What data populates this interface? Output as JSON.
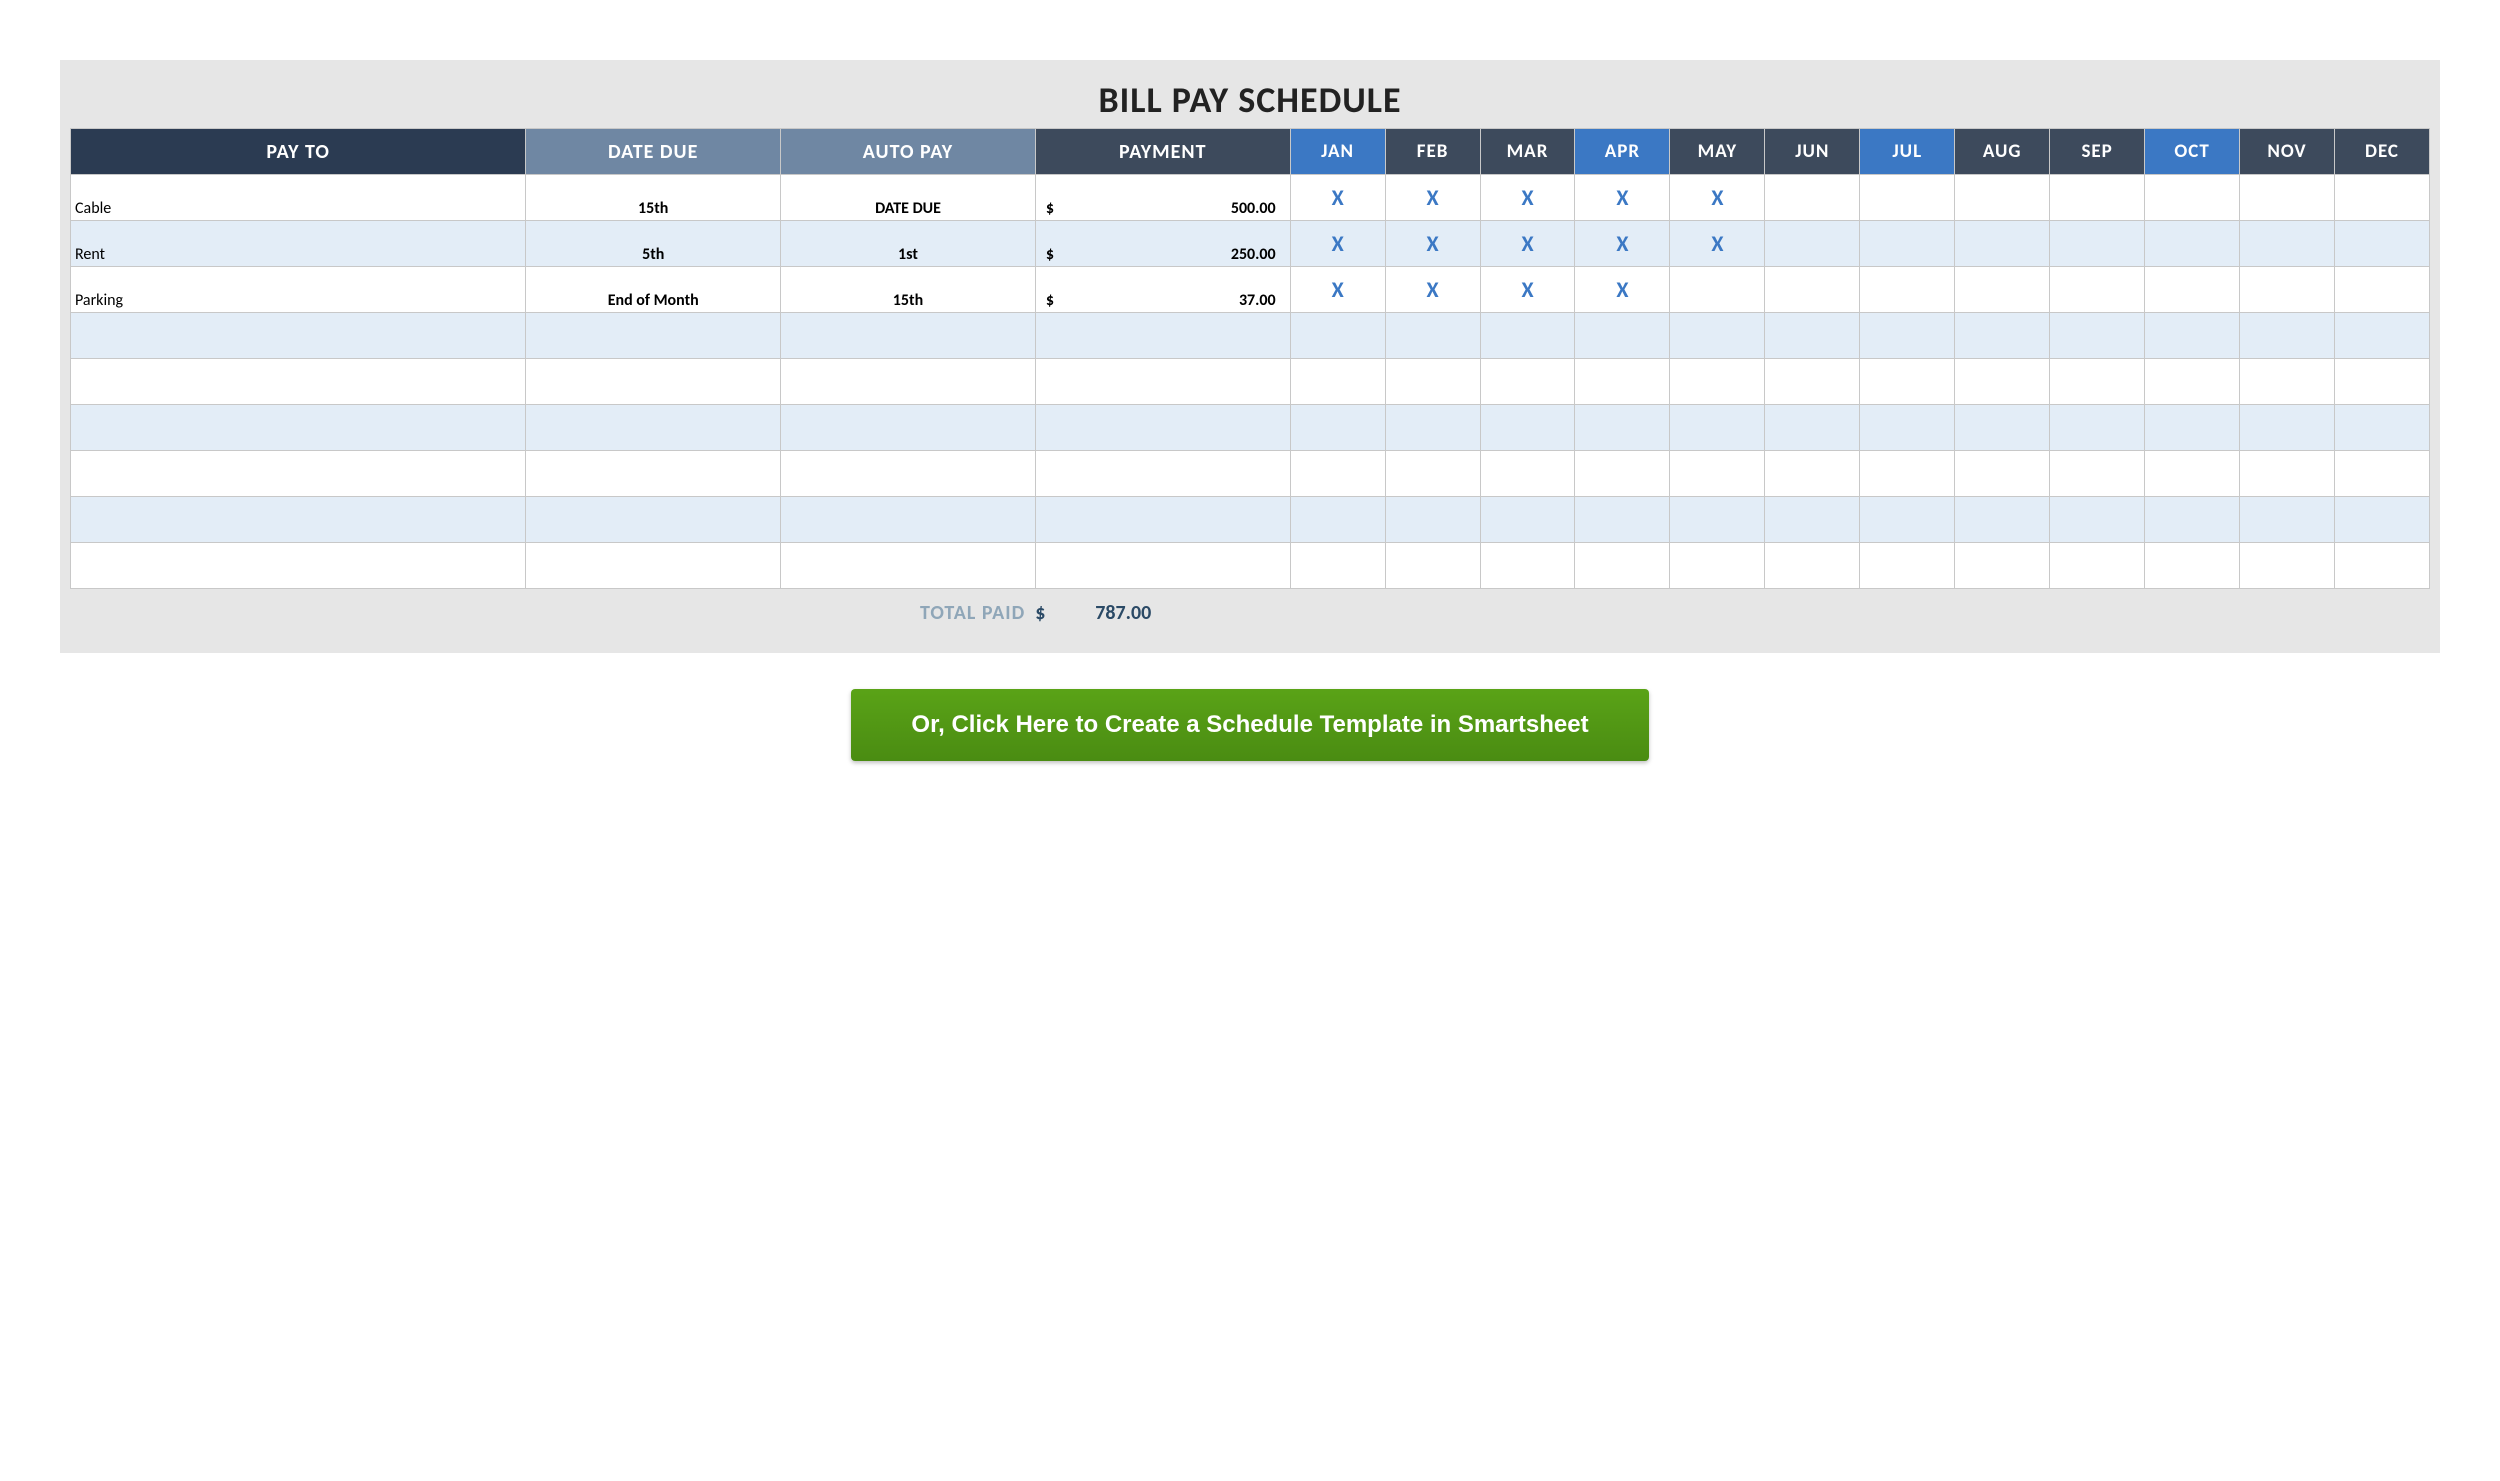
{
  "title": "BILL PAY SCHEDULE",
  "headers": {
    "payto": {
      "label": "PAY TO",
      "bg": "#2b3b52"
    },
    "datedue": {
      "label": "DATE DUE",
      "bg": "#6f87a3"
    },
    "autopay": {
      "label": "AUTO PAY",
      "bg": "#6f87a3"
    },
    "payment": {
      "label": "PAYMENT",
      "bg": "#3d4a5c"
    }
  },
  "months": [
    {
      "label": "JAN",
      "bg": "#3b78c4"
    },
    {
      "label": "FEB",
      "bg": "#3d4a5c"
    },
    {
      "label": "MAR",
      "bg": "#3d4a5c"
    },
    {
      "label": "APR",
      "bg": "#3b78c4"
    },
    {
      "label": "MAY",
      "bg": "#3d4a5c"
    },
    {
      "label": "JUN",
      "bg": "#3d4a5c"
    },
    {
      "label": "JUL",
      "bg": "#3b78c4"
    },
    {
      "label": "AUG",
      "bg": "#3d4a5c"
    },
    {
      "label": "SEP",
      "bg": "#3d4a5c"
    },
    {
      "label": "OCT",
      "bg": "#3b78c4"
    },
    {
      "label": "NOV",
      "bg": "#3d4a5c"
    },
    {
      "label": "DEC",
      "bg": "#3d4a5c"
    }
  ],
  "currency_symbol": "$",
  "mark_symbol": "X",
  "mark_color": "#3b78c4",
  "rows": [
    {
      "payto": "Cable",
      "datedue": "15th",
      "autopay": "DATE DUE",
      "payment": "500.00",
      "marks": [
        true,
        true,
        true,
        true,
        true,
        false,
        false,
        false,
        false,
        false,
        false,
        false
      ]
    },
    {
      "payto": "Rent",
      "datedue": "5th",
      "autopay": "1st",
      "payment": "250.00",
      "marks": [
        true,
        true,
        true,
        true,
        true,
        false,
        false,
        false,
        false,
        false,
        false,
        false
      ]
    },
    {
      "payto": "Parking",
      "datedue": "End of Month",
      "autopay": "15th",
      "payment": "37.00",
      "marks": [
        true,
        true,
        true,
        true,
        false,
        false,
        false,
        false,
        false,
        false,
        false,
        false
      ]
    },
    {
      "payto": "",
      "datedue": "",
      "autopay": "",
      "payment": "",
      "marks": [
        false,
        false,
        false,
        false,
        false,
        false,
        false,
        false,
        false,
        false,
        false,
        false
      ]
    },
    {
      "payto": "",
      "datedue": "",
      "autopay": "",
      "payment": "",
      "marks": [
        false,
        false,
        false,
        false,
        false,
        false,
        false,
        false,
        false,
        false,
        false,
        false
      ]
    },
    {
      "payto": "",
      "datedue": "",
      "autopay": "",
      "payment": "",
      "marks": [
        false,
        false,
        false,
        false,
        false,
        false,
        false,
        false,
        false,
        false,
        false,
        false
      ]
    },
    {
      "payto": "",
      "datedue": "",
      "autopay": "",
      "payment": "",
      "marks": [
        false,
        false,
        false,
        false,
        false,
        false,
        false,
        false,
        false,
        false,
        false,
        false
      ]
    },
    {
      "payto": "",
      "datedue": "",
      "autopay": "",
      "payment": "",
      "marks": [
        false,
        false,
        false,
        false,
        false,
        false,
        false,
        false,
        false,
        false,
        false,
        false
      ]
    },
    {
      "payto": "",
      "datedue": "",
      "autopay": "",
      "payment": "",
      "marks": [
        false,
        false,
        false,
        false,
        false,
        false,
        false,
        false,
        false,
        false,
        false,
        false
      ]
    }
  ],
  "total": {
    "label": "TOTAL PAID",
    "symbol": "$",
    "value": "787.00"
  },
  "col_widths": {
    "payto": "19.3%",
    "datedue": "10.8%",
    "autopay": "10.8%",
    "payment": "10.8%",
    "month": "4.025%"
  },
  "alt_row_bg": "#e3edf7",
  "cta": {
    "label": "Or, Click Here to Create a Schedule Template in Smartsheet",
    "bg_top": "#5aa317",
    "bg_bottom": "#4a8c12",
    "text_color": "#ffffff"
  }
}
